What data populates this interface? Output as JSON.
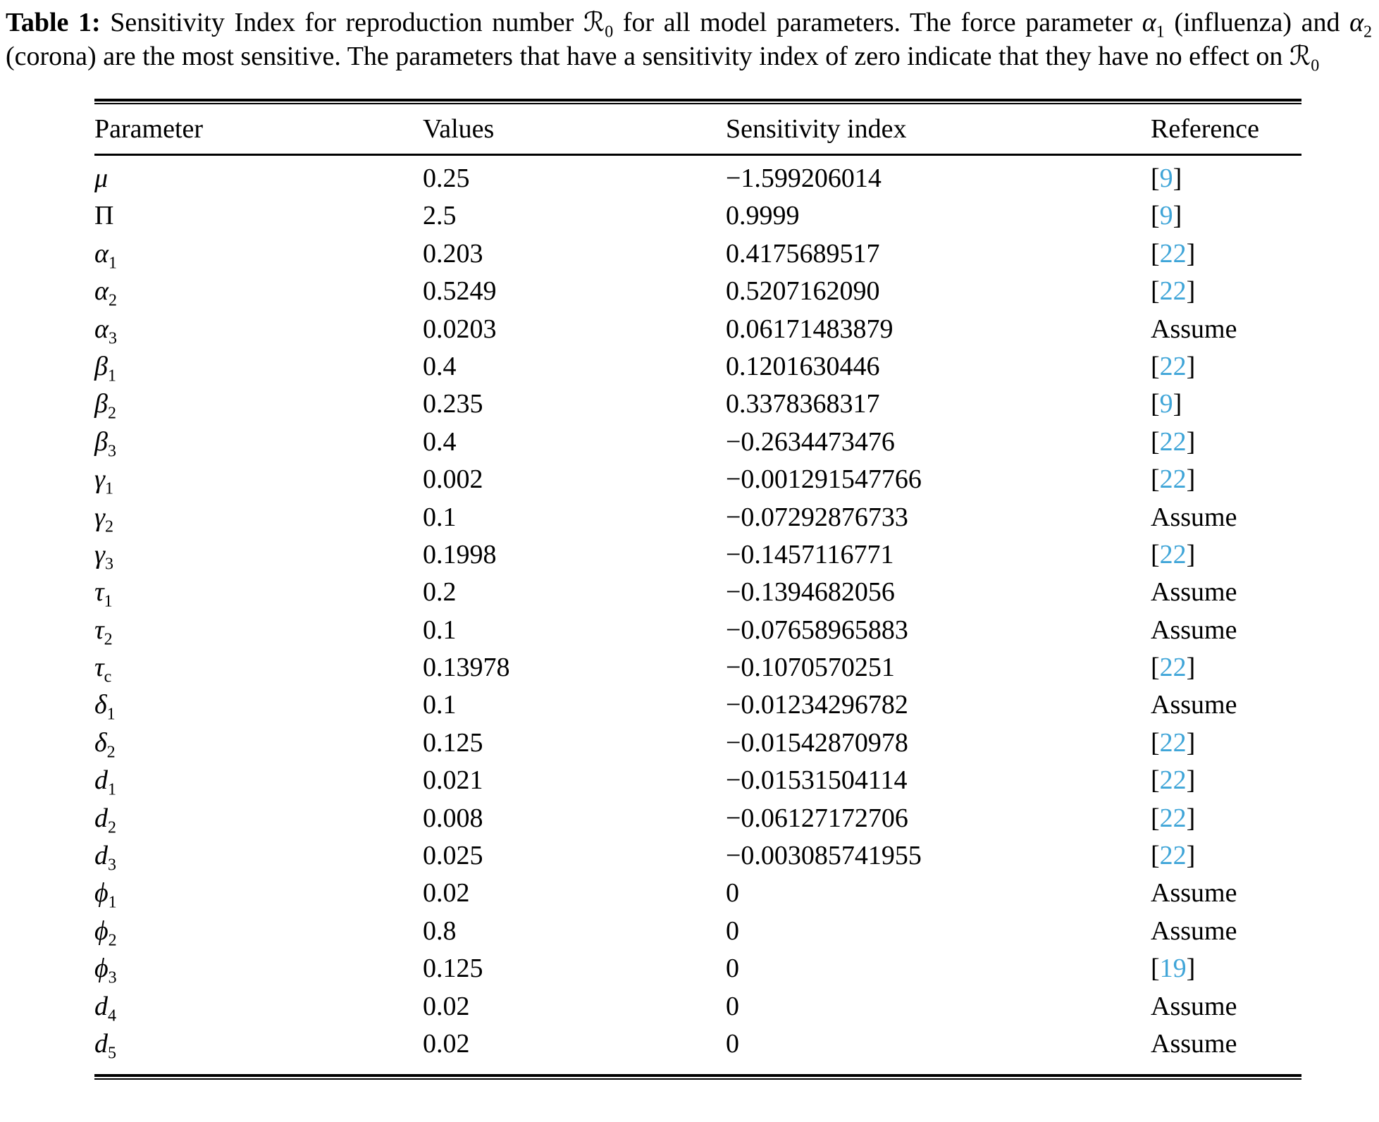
{
  "caption": {
    "label": "Table 1:",
    "part1": " Sensitivity Index for reproduction number ",
    "r_symbol": "ℛ",
    "r_sub": "0",
    "part2": " for all model parameters. The force parameter ",
    "alpha_sym": "α",
    "alpha1_sub": "1",
    "part3": " (influenza) and ",
    "alpha2_sub": "2",
    "part4": " (corona) are the most sensitive. The parameters that have a sensitivity index of zero indicate that they have no effect on "
  },
  "table": {
    "accent_color": "#3fa5d8",
    "bracket_open": "[",
    "bracket_close": "]",
    "headers": {
      "parameter": "Parameter",
      "values": "Values",
      "sensitivity": "Sensitivity index",
      "reference": "Reference"
    },
    "rows": [
      {
        "sym": "μ",
        "sub": "",
        "value": "0.25",
        "sens": "−1.599206014",
        "ref_num": "9",
        "ref_label": ""
      },
      {
        "sym": "Π",
        "sub": "",
        "upright": true,
        "value": "2.5",
        "sens": "0.9999",
        "ref_num": "9",
        "ref_label": ""
      },
      {
        "sym": "α",
        "sub": "1",
        "value": "0.203",
        "sens": "0.4175689517",
        "ref_num": "22",
        "ref_label": ""
      },
      {
        "sym": "α",
        "sub": "2",
        "value": "0.5249",
        "sens": "0.5207162090",
        "ref_num": "22",
        "ref_label": ""
      },
      {
        "sym": "α",
        "sub": "3",
        "value": "0.0203",
        "sens": "0.06171483879",
        "ref_num": "",
        "ref_label": "Assume"
      },
      {
        "sym": "β",
        "sub": "1",
        "value": "0.4",
        "sens": "0.1201630446",
        "ref_num": "22",
        "ref_label": ""
      },
      {
        "sym": "β",
        "sub": "2",
        "value": "0.235",
        "sens": "0.3378368317",
        "ref_num": "9",
        "ref_label": ""
      },
      {
        "sym": "β",
        "sub": "3",
        "value": "0.4",
        "sens": "−0.2634473476",
        "ref_num": "22",
        "ref_label": ""
      },
      {
        "sym": "γ",
        "sub": "1",
        "value": "0.002",
        "sens": "−0.001291547766",
        "ref_num": "22",
        "ref_label": ""
      },
      {
        "sym": "γ",
        "sub": "2",
        "value": "0.1",
        "sens": "−0.07292876733",
        "ref_num": "",
        "ref_label": "Assume"
      },
      {
        "sym": "γ",
        "sub": "3",
        "value": "0.1998",
        "sens": "−0.1457116771",
        "ref_num": "22",
        "ref_label": ""
      },
      {
        "sym": "τ",
        "sub": "1",
        "value": "0.2",
        "sens": "−0.1394682056",
        "ref_num": "",
        "ref_label": "Assume"
      },
      {
        "sym": "τ",
        "sub": "2",
        "value": "0.1",
        "sens": "−0.07658965883",
        "ref_num": "",
        "ref_label": "Assume"
      },
      {
        "sym": "τ",
        "sub": "c",
        "value": "0.13978",
        "sens": "−0.1070570251",
        "ref_num": "22",
        "ref_label": ""
      },
      {
        "sym": "δ",
        "sub": "1",
        "value": "0.1",
        "sens": "−0.01234296782",
        "ref_num": "",
        "ref_label": "Assume"
      },
      {
        "sym": "δ",
        "sub": "2",
        "value": "0.125",
        "sens": "−0.01542870978",
        "ref_num": "22",
        "ref_label": ""
      },
      {
        "sym": "d",
        "sub": "1",
        "value": "0.021",
        "sens": "−0.01531504114",
        "ref_num": "22",
        "ref_label": ""
      },
      {
        "sym": "d",
        "sub": "2",
        "value": "0.008",
        "sens": "−0.06127172706",
        "ref_num": "22",
        "ref_label": ""
      },
      {
        "sym": "d",
        "sub": "3",
        "value": "0.025",
        "sens": "−0.003085741955",
        "ref_num": "22",
        "ref_label": ""
      },
      {
        "sym": "ϕ",
        "sub": "1",
        "value": "0.02",
        "sens": "0",
        "ref_num": "",
        "ref_label": "Assume"
      },
      {
        "sym": "ϕ",
        "sub": "2",
        "value": "0.8",
        "sens": "0",
        "ref_num": "",
        "ref_label": "Assume"
      },
      {
        "sym": "ϕ",
        "sub": "3",
        "value": "0.125",
        "sens": "0",
        "ref_num": "19",
        "ref_label": ""
      },
      {
        "sym": "d",
        "sub": "4",
        "value": "0.02",
        "sens": "0",
        "ref_num": "",
        "ref_label": "Assume"
      },
      {
        "sym": "d",
        "sub": "5",
        "value": "0.02",
        "sens": "0",
        "ref_num": "",
        "ref_label": "Assume"
      }
    ]
  }
}
